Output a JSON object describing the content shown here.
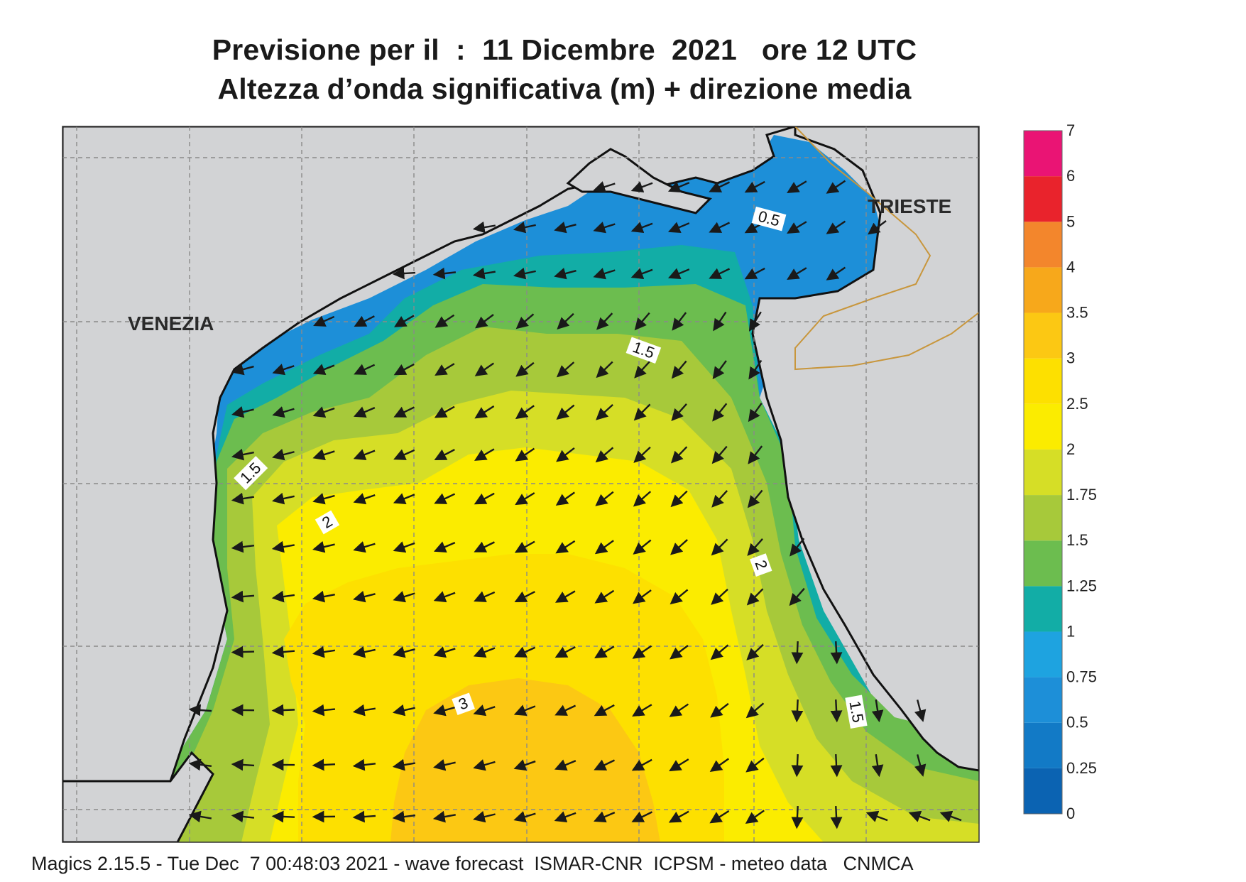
{
  "header": {
    "title_line1": "Previsione per il  :  11 Dicembre  2021   ore 12 UTC",
    "title_line2": "Altezza d’onda significativa (m) + direzione media"
  },
  "map": {
    "place_labels": [
      "VENEZIA",
      "TRIESTE"
    ],
    "contour_labels": [
      "0.5",
      "1.5",
      "1.5",
      "2",
      "2",
      "3",
      "1.5"
    ],
    "land_color": "#d2d3d5",
    "coast_color": "#111111",
    "border_color": "#c8963c"
  },
  "legend": {
    "levels": [
      "0",
      "0.25",
      "0.5",
      "0.75",
      "1",
      "1.25",
      "1.5",
      "1.75",
      "2",
      "2.5",
      "3",
      "3.5",
      "4",
      "5",
      "6",
      "7"
    ],
    "colors": [
      "#0b63b2",
      "#127ac6",
      "#1d8fd8",
      "#1ea3e0",
      "#12ada6",
      "#6cbd4f",
      "#a7c93a",
      "#d6de26",
      "#fbec00",
      "#fde000",
      "#fcc813",
      "#f7a81b",
      "#f3862c",
      "#e9232c",
      "#ea1474"
    ]
  },
  "footer": {
    "text": "Magics 2.15.5 - Tue Dec  7 00:48:03 2021 - wave forecast  ISMAR-CNR  ICPSM - meteo data   CNMCA"
  }
}
